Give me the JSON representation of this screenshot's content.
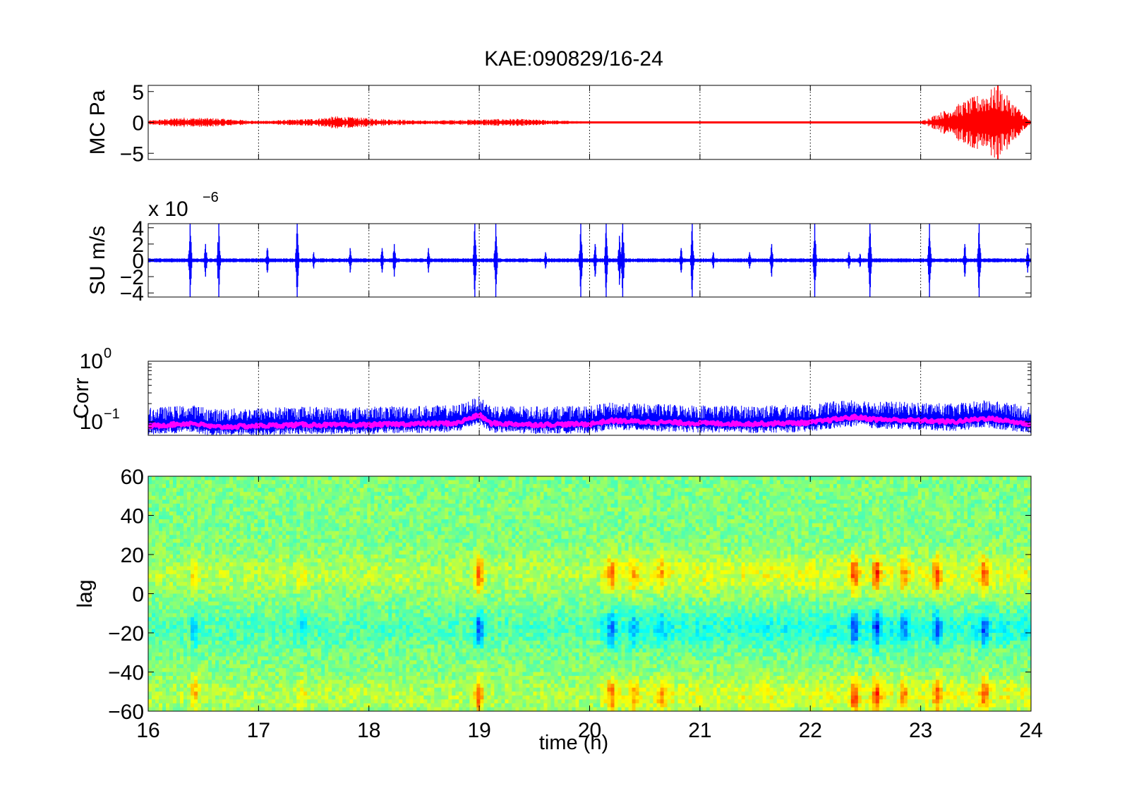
{
  "figure": {
    "title": "KAE:090829/16-24",
    "xlabel": "time (h)",
    "background": "#ffffff"
  },
  "chart_data": [
    {
      "type": "line",
      "panel": "pressure",
      "ylabel": "MC Pa",
      "xlim": [
        16,
        24
      ],
      "ylim": [
        -6,
        6
      ],
      "yticks": [
        -5,
        0,
        5
      ],
      "ytick_labels": [
        "−5",
        "0",
        "5"
      ],
      "xticks": [
        16,
        17,
        18,
        19,
        20,
        21,
        22,
        23,
        24
      ],
      "grid": "x-dotted",
      "series": [
        {
          "color": "#ff0000",
          "x": [
            16.0,
            16.3,
            16.6,
            17.0,
            17.5,
            17.7,
            18.1,
            18.5,
            19.0,
            19.3,
            20.0,
            21.0,
            22.0,
            23.0,
            23.7,
            24.0
          ],
          "amplitude": [
            0.3,
            0.8,
            0.7,
            0.25,
            0.6,
            1.0,
            0.6,
            0.3,
            0.5,
            0.6,
            0.15,
            0.15,
            0.15,
            0.15,
            6.0,
            0.15
          ]
        }
      ]
    },
    {
      "type": "line",
      "panel": "seismic",
      "ylabel": "SU m/s",
      "scale_label": "x 10",
      "scale_exponent": "−6",
      "xlim": [
        16,
        24
      ],
      "ylim": [
        -4.5,
        4.5
      ],
      "yticks": [
        -4,
        -2,
        0,
        2,
        4
      ],
      "ytick_labels": [
        "−4",
        "−2",
        "0",
        "2",
        "4"
      ],
      "xticks": [
        16,
        17,
        18,
        19,
        20,
        21,
        22,
        23,
        24
      ],
      "grid": "x-dotted",
      "series": [
        {
          "color": "#0000ff",
          "bursts_x": [
            16.38,
            16.52,
            16.64,
            17.08,
            17.35,
            17.5,
            17.83,
            18.12,
            18.23,
            18.54,
            18.96,
            19.15,
            19.6,
            19.92,
            20.05,
            20.15,
            20.27,
            20.3,
            20.83,
            20.93,
            21.12,
            21.45,
            21.65,
            22.04,
            22.35,
            22.45,
            22.54,
            23.08,
            23.4,
            23.53,
            23.97
          ],
          "bursts_amp": [
            4.5,
            2.0,
            4.5,
            1.5,
            4.5,
            1.0,
            1.5,
            1.5,
            2.0,
            1.5,
            4.5,
            4.5,
            1.0,
            4.5,
            2.0,
            4.5,
            3.0,
            4.5,
            1.5,
            4.5,
            1.0,
            1.0,
            2.0,
            4.5,
            1.0,
            0.8,
            4.5,
            4.5,
            2.0,
            4.5,
            1.5
          ]
        }
      ]
    },
    {
      "type": "line",
      "panel": "correlation",
      "ylabel": "Corr",
      "xlim": [
        16,
        24
      ],
      "ylim": [
        0.06,
        1.0
      ],
      "yscale": "log",
      "ytick_labels": [
        {
          "base": "10",
          "exp": "0"
        },
        {
          "base": "10",
          "exp": "−1"
        }
      ],
      "xticks": [
        16,
        17,
        18,
        19,
        20,
        21,
        22,
        23,
        24
      ],
      "grid": "x-dotted",
      "series": [
        {
          "color": "#0000ff",
          "x": [
            16.0,
            16.4,
            16.6,
            17.4,
            17.8,
            18.3,
            18.8,
            19.0,
            19.1,
            19.5,
            20.0,
            20.2,
            20.5,
            21.0,
            21.5,
            22.0,
            22.4,
            22.6,
            23.0,
            23.3,
            23.6,
            24.0
          ],
          "y": [
            0.085,
            0.095,
            0.082,
            0.09,
            0.088,
            0.092,
            0.095,
            0.13,
            0.095,
            0.09,
            0.092,
            0.105,
            0.1,
            0.095,
            0.093,
            0.097,
            0.12,
            0.11,
            0.105,
            0.1,
            0.115,
            0.09
          ]
        },
        {
          "color": "#ff00ff",
          "x": [
            16.0,
            16.4,
            16.6,
            17.4,
            17.8,
            18.3,
            18.8,
            19.0,
            19.1,
            19.5,
            20.0,
            20.2,
            20.5,
            21.0,
            21.5,
            22.0,
            22.4,
            22.6,
            23.0,
            23.3,
            23.6,
            24.0
          ],
          "y": [
            0.085,
            0.095,
            0.082,
            0.09,
            0.088,
            0.092,
            0.095,
            0.13,
            0.095,
            0.09,
            0.092,
            0.105,
            0.1,
            0.095,
            0.093,
            0.097,
            0.12,
            0.11,
            0.105,
            0.1,
            0.115,
            0.09
          ]
        }
      ]
    },
    {
      "type": "heatmap",
      "panel": "lag",
      "ylabel": "lag",
      "xlabel": "time (h)",
      "xlim": [
        16,
        24
      ],
      "ylim": [
        -60,
        60
      ],
      "yticks": [
        -60,
        -40,
        -20,
        0,
        20,
        40,
        60
      ],
      "ytick_labels": [
        "−60",
        "−40",
        "−20",
        "0",
        "20",
        "40",
        "60"
      ],
      "xticks": [
        16,
        17,
        18,
        19,
        20,
        21,
        22,
        23,
        24
      ],
      "xtick_labels": [
        "16",
        "17",
        "18",
        "19",
        "20",
        "21",
        "22",
        "23",
        "24"
      ],
      "colormap": "jet",
      "bands": [
        {
          "lag": 10,
          "sign": 1
        },
        {
          "lag": -18,
          "sign": -1
        },
        {
          "lag": -52,
          "sign": 1
        }
      ],
      "events": [
        {
          "t": 16.42,
          "strength": 0.6
        },
        {
          "t": 17.4,
          "strength": 0.4
        },
        {
          "t": 19.0,
          "strength": 1.0
        },
        {
          "t": 20.2,
          "strength": 0.7
        },
        {
          "t": 20.4,
          "strength": 0.5
        },
        {
          "t": 20.65,
          "strength": 0.45
        },
        {
          "t": 22.4,
          "strength": 0.9
        },
        {
          "t": 22.6,
          "strength": 1.0
        },
        {
          "t": 22.85,
          "strength": 0.7
        },
        {
          "t": 23.15,
          "strength": 0.8
        },
        {
          "t": 23.58,
          "strength": 0.8
        }
      ]
    }
  ]
}
